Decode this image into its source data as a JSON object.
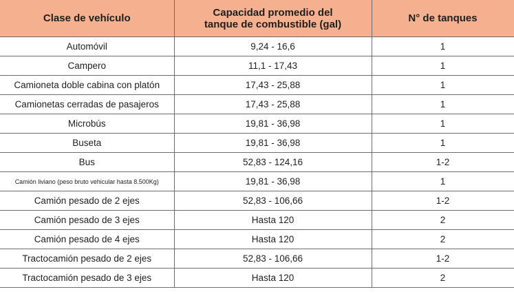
{
  "table": {
    "headers": [
      "Clase de vehículo",
      "Capacidad promedio del\ntanque de combustible (gal)",
      "N° de tanques"
    ],
    "header_line1": "Capacidad promedio del",
    "header_line2": "tanque de combustible (gal)",
    "header_color": "#f4b08f",
    "rows": [
      [
        "Automóvil",
        "9,24 - 16,6",
        "1"
      ],
      [
        "Campero",
        "11,1 - 17,43",
        "1"
      ],
      [
        "Camioneta doble cabina con platón",
        "17,43 - 25,88",
        "1"
      ],
      [
        "Camionetas cerradas de pasajeros",
        "17,43 - 25,88",
        "1"
      ],
      [
        "Microbús",
        "19,81 - 36,98",
        "1"
      ],
      [
        "Buseta",
        "19,81 - 36,98",
        "1"
      ],
      [
        "Bus",
        "52,83 - 124,16",
        "1-2"
      ],
      [
        "Camión liviano (peso bruto vehicular hasta 8.500Kg)",
        "19,81 - 36,98",
        "1"
      ],
      [
        "Camión pesado de 2 ejes",
        "52,83 - 106,66",
        "1-2"
      ],
      [
        "Camión pesado de 3 ejes",
        "Hasta 120",
        "2"
      ],
      [
        "Camión pesado de 4 ejes",
        "Hasta 120",
        "2"
      ],
      [
        "Tractocamión pesado de 2 ejes",
        "52,83 - 106,66",
        "1-2"
      ],
      [
        "Tractocamión pesado de 3 ejes",
        "Hasta 120",
        "2"
      ]
    ]
  }
}
